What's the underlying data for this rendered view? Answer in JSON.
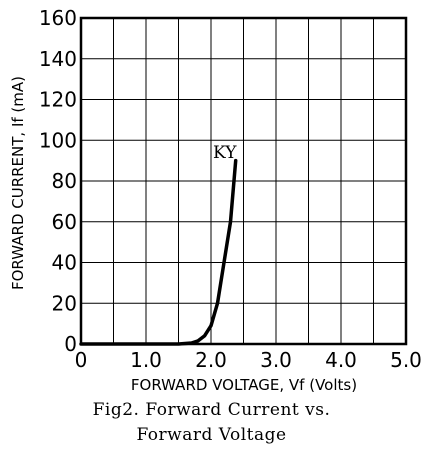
{
  "chart_data": {
    "type": "line",
    "xlabel": "FORWARD VOLTAGE, Vf (Volts)",
    "ylabel": "FORWARD CURRENT, If (mA)",
    "xlim": [
      0,
      5.0
    ],
    "ylim": [
      0,
      160
    ],
    "x_ticks": [
      "0",
      "1.0",
      "2.0",
      "3.0",
      "4.0",
      "5.0"
    ],
    "y_ticks": [
      "0",
      "20",
      "40",
      "60",
      "80",
      "100",
      "120",
      "140",
      "160"
    ],
    "grid": true,
    "series": [
      {
        "name": "KY",
        "x": [
          0,
          1.0,
          1.5,
          1.7,
          1.8,
          1.9,
          2.0,
          2.1,
          2.2,
          2.3,
          2.38
        ],
        "y": [
          0,
          0,
          0,
          0.5,
          1.5,
          4,
          9,
          20,
          40,
          60,
          90
        ]
      }
    ]
  },
  "caption": {
    "line1": "Fig2. Forward Current vs.",
    "line2": "Forward Voltage"
  }
}
